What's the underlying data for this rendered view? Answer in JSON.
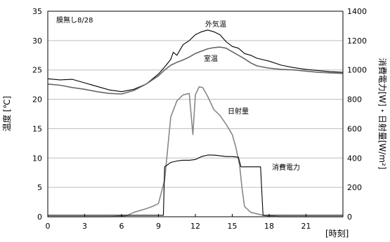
{
  "chart_data": {
    "type": "line",
    "annotation": "膜無し8/28",
    "xlabel": "[時刻]",
    "ylabel_left": "温度 [℃]",
    "ylabel_right": "消費電力[W]・日射量[W/m²]",
    "xlim": [
      0,
      24
    ],
    "ylim_left": [
      0,
      35
    ],
    "ylim_right": [
      0,
      1400
    ],
    "xticks": [
      "0",
      "3",
      "6",
      "9",
      "12",
      "15",
      "18",
      "21"
    ],
    "yticks_left": [
      "0",
      "5",
      "10",
      "15",
      "20",
      "25",
      "30",
      "35"
    ],
    "yticks_right": [
      "0",
      "200",
      "400",
      "600",
      "800",
      "1000",
      "1200",
      "1400"
    ],
    "grid": "horizontal",
    "series": [
      {
        "name": "外気温",
        "axis": "left",
        "color": "#000000",
        "x": [
          0,
          1,
          2,
          3,
          4,
          5,
          6,
          7,
          8,
          9,
          9.5,
          10,
          10.2,
          10.5,
          11,
          11.5,
          12,
          12.5,
          13,
          13.5,
          14,
          14.5,
          15,
          15.5,
          16,
          16.5,
          17,
          18,
          19,
          20,
          21,
          22,
          23,
          24
        ],
        "values": [
          23.5,
          23.3,
          23.4,
          22.8,
          22.2,
          21.6,
          21.3,
          21.7,
          22.6,
          24.3,
          25.5,
          26.8,
          28.0,
          27.5,
          29.3,
          30.0,
          31.0,
          31.5,
          31.8,
          31.5,
          31.0,
          29.8,
          29.0,
          28.7,
          27.8,
          27.5,
          27.0,
          26.5,
          25.8,
          25.4,
          25.1,
          24.9,
          24.7,
          24.6
        ]
      },
      {
        "name": "室温",
        "axis": "left",
        "color": "#666666",
        "x": [
          0,
          1,
          2,
          3,
          4,
          5,
          6,
          7,
          8,
          9,
          9.5,
          10,
          10.5,
          11,
          11.5,
          12,
          12.5,
          13,
          13.5,
          14,
          14.5,
          15,
          15.5,
          16,
          16.5,
          17,
          18,
          19,
          20,
          21,
          22,
          23,
          24
        ],
        "values": [
          22.6,
          22.4,
          22.0,
          21.7,
          21.3,
          21.0,
          20.9,
          21.5,
          22.6,
          24.0,
          25.0,
          25.8,
          26.3,
          26.7,
          27.2,
          27.8,
          28.2,
          28.6,
          28.8,
          28.9,
          28.7,
          28.1,
          27.5,
          26.9,
          26.2,
          25.7,
          25.3,
          25.1,
          25.0,
          24.8,
          24.6,
          24.5,
          24.4
        ]
      },
      {
        "name": "日射量",
        "axis": "right",
        "color": "#888888",
        "x": [
          0,
          5,
          6,
          6.5,
          7,
          8,
          8.5,
          9,
          9.5,
          10,
          10.5,
          11,
          11.5,
          11.8,
          12,
          12.3,
          12.6,
          13,
          13.5,
          14,
          14.5,
          15,
          15.3,
          15.6,
          15.8,
          16,
          16.5,
          17,
          17.5,
          18,
          18.5,
          19,
          24
        ],
        "values": [
          0,
          0,
          4,
          10,
          30,
          55,
          70,
          90,
          250,
          680,
          790,
          830,
          840,
          560,
          830,
          885,
          880,
          820,
          730,
          690,
          630,
          560,
          470,
          350,
          190,
          70,
          30,
          20,
          10,
          5,
          2,
          0,
          0
        ]
      },
      {
        "name": "消費電力",
        "axis": "right",
        "color": "#000000",
        "x": [
          0,
          9.4,
          9.5,
          10,
          10.5,
          11,
          11.5,
          12,
          12.5,
          13,
          13.5,
          14,
          14.5,
          15,
          15.5,
          15.7,
          16,
          17.3,
          17.5,
          24
        ],
        "values": [
          10,
          10,
          340,
          370,
          380,
          385,
          385,
          390,
          410,
          420,
          420,
          415,
          410,
          410,
          405,
          340,
          340,
          340,
          10,
          10
        ]
      }
    ]
  }
}
